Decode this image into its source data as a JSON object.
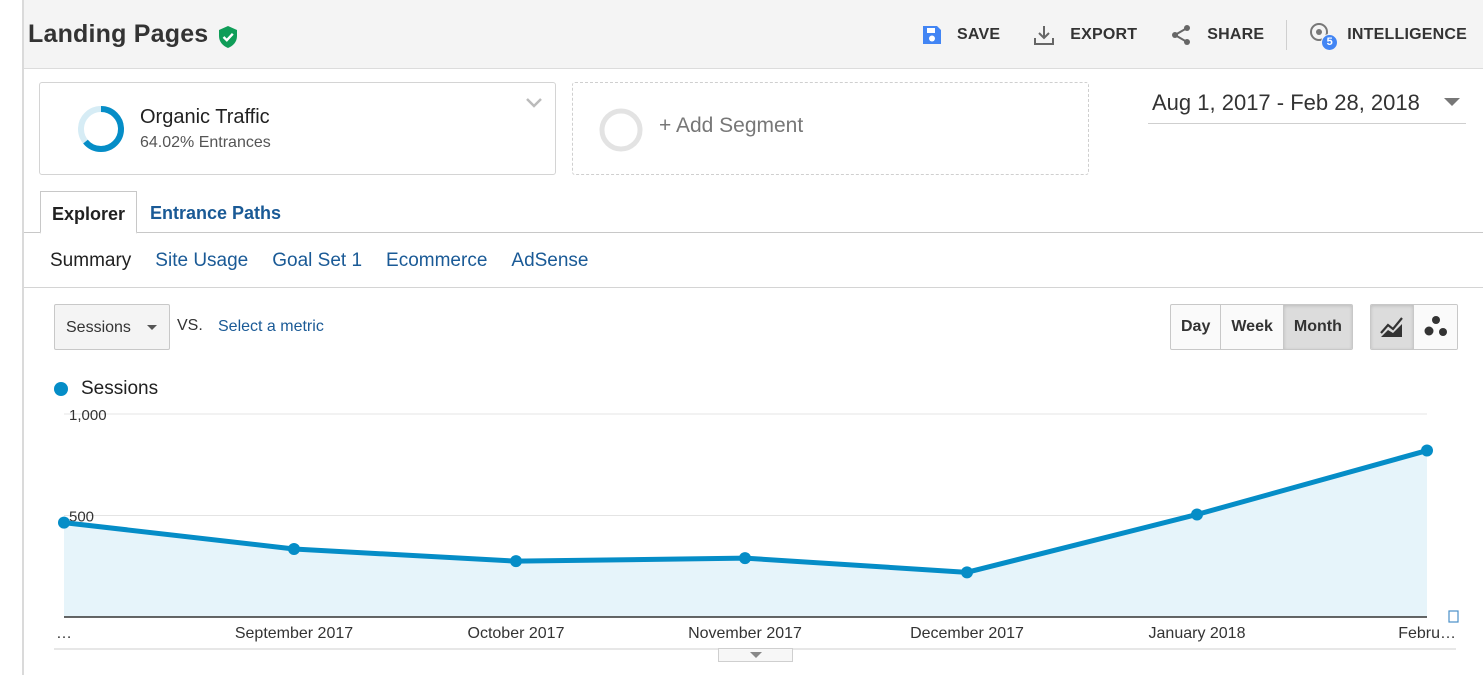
{
  "header": {
    "title": "Landing Pages",
    "actions": {
      "save": "SAVE",
      "export": "EXPORT",
      "share": "SHARE",
      "intelligence": "INTELLIGENCE",
      "intelligence_badge": "5"
    }
  },
  "segments": {
    "active": {
      "name": "Organic Traffic",
      "detail": "64.02% Entrances",
      "percent": 64.02
    },
    "add_label": "+ Add Segment"
  },
  "date_range": "Aug 1, 2017 - Feb 28, 2018",
  "tabs": {
    "explorer": "Explorer",
    "entrance_paths": "Entrance Paths"
  },
  "subnav": [
    "Summary",
    "Site Usage",
    "Goal Set 1",
    "Ecommerce",
    "AdSense"
  ],
  "controls": {
    "metric": "Sessions",
    "vs": "VS.",
    "select_metric": "Select a metric",
    "granularity": [
      "Day",
      "Week",
      "Month"
    ],
    "granularity_selected": "Month"
  },
  "colors": {
    "series": "#058dc7",
    "area": "#e6f4fa",
    "link": "#1a5a96",
    "shield": "#0f9d58"
  },
  "chart_data": {
    "type": "area",
    "series": [
      {
        "name": "Sessions",
        "values": [
          465,
          335,
          275,
          290,
          220,
          505,
          820
        ]
      }
    ],
    "categories": [
      "…",
      "September 2017",
      "October 2017",
      "November 2017",
      "December 2017",
      "January 2018",
      "Febru…"
    ],
    "yticks": [
      "500",
      "1,000"
    ],
    "ylim": [
      0,
      1000
    ],
    "grid": true
  }
}
